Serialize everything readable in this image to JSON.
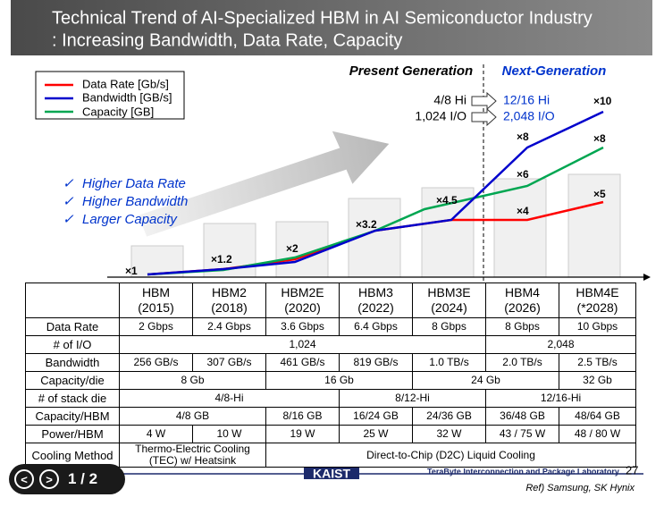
{
  "header": {
    "title_line1": "Technical Trend of AI-Specialized HBM in AI Semiconductor Industry",
    "title_line2": ": Increasing Bandwidth, Data Rate, Capacity"
  },
  "legend": [
    "Data Rate [Gb/s]",
    "Bandwidth [GB/s]",
    "Capacity [GB]"
  ],
  "trend": {
    "present": "Present Generation",
    "next": "Next-Generation",
    "stack_from": "4/8 Hi",
    "stack_to": "12/16 Hi",
    "io_from": "1,024 I/O",
    "io_to": "2,048 I/O",
    "bullets": [
      "Higher Data Rate",
      "Higher Bandwidth",
      "Larger Capacity"
    ],
    "multipliers": [
      "×1",
      "×1.2",
      "×2",
      "×3.2",
      "×4.5",
      "×4",
      "×6",
      "×8",
      "×10",
      "×8",
      "×5"
    ]
  },
  "table": {
    "columns": [
      {
        "name": "HBM",
        "year": "(2015)"
      },
      {
        "name": "HBM2",
        "year": "(2018)"
      },
      {
        "name": "HBM2E",
        "year": "(2020)"
      },
      {
        "name": "HBM3",
        "year": "(2022)"
      },
      {
        "name": "HBM3E",
        "year": "(2024)"
      },
      {
        "name": "HBM4",
        "year": "(2026)"
      },
      {
        "name": "HBM4E",
        "year": "(*2028)"
      }
    ],
    "rows": [
      {
        "label": "Data Rate",
        "cells": [
          "2 Gbps",
          "2.4 Gbps",
          "3.6 Gbps",
          "6.4 Gbps",
          "8 Gbps",
          "8 Gbps",
          "10 Gbps"
        ]
      },
      {
        "label": "# of I/O",
        "cells": [
          "1,024",
          "2,048"
        ]
      },
      {
        "label": "Bandwidth",
        "cells": [
          "256 GB/s",
          "307 GB/s",
          "461 GB/s",
          "819 GB/s",
          "1.0 TB/s",
          "2.0 TB/s",
          "2.5 TB/s"
        ]
      },
      {
        "label": "Capacity/die",
        "cells": [
          "8 Gb",
          "16 Gb",
          "24 Gb",
          "32 Gb"
        ]
      },
      {
        "label": "# of stack die",
        "cells": [
          "4/8-Hi",
          "8/12-Hi",
          "12/16-Hi"
        ]
      },
      {
        "label": "Capacity/HBM",
        "cells": [
          "4/8 GB",
          "8/16 GB",
          "16/24 GB",
          "24/36 GB",
          "36/48 GB",
          "48/64 GB"
        ]
      },
      {
        "label": "Power/HBM",
        "cells": [
          "4 W",
          "10 W",
          "19 W",
          "25 W",
          "32 W",
          "43 / 75 W",
          "48 / 80 W"
        ]
      },
      {
        "label": "Cooling Method",
        "cells": [
          "Thermo-Electric Cooling (TEC) w/ Heatsink",
          "Direct-to-Chip (D2C) Liquid Cooling"
        ]
      }
    ]
  },
  "footer": {
    "lab": "TeraByte Interconnection and Package Laboratory",
    "page": "27",
    "ref": "Ref) Samsung, SK Hynix",
    "logo": "KAIST"
  },
  "viewer": {
    "counter": "1 / 2"
  }
}
